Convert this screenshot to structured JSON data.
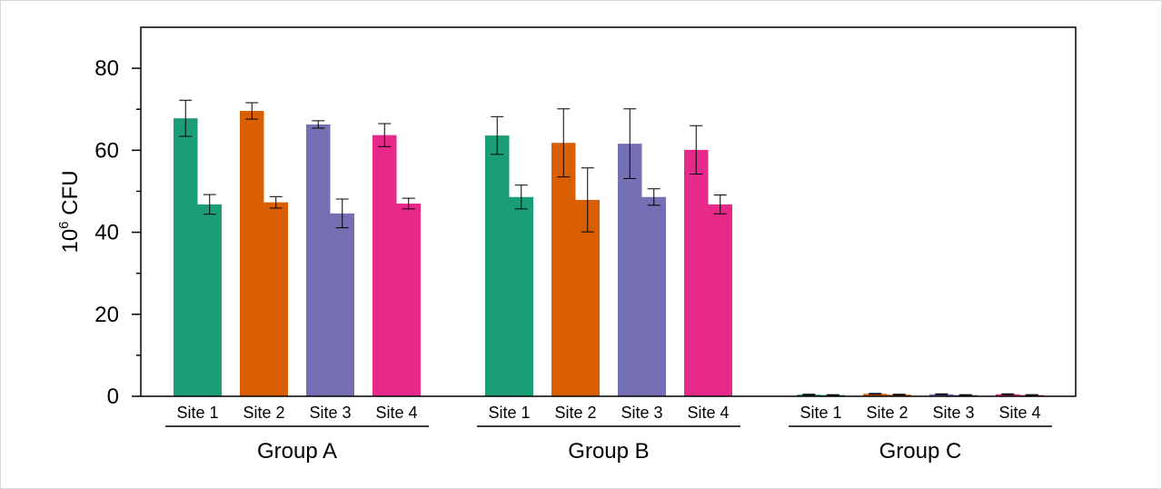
{
  "chart_data": {
    "type": "bar",
    "title": "",
    "ylabel": "10",
    "ylabel_sup": "6",
    "ylabel_unit": " CFU",
    "xlabel": "",
    "ylim": [
      0,
      90
    ],
    "yticks": [
      0,
      20,
      40,
      60,
      80
    ],
    "yticks_labels": [
      "0",
      "20",
      "40",
      "60",
      "80"
    ],
    "grid": false,
    "legend": "none",
    "bar_colors": [
      "#1b9e77",
      "#d95f02",
      "#7570b3",
      "#e7298a"
    ],
    "groups": [
      {
        "name": "Group A",
        "sites": [
          {
            "label": "Site 1",
            "values": [
              67.8,
              46.8
            ],
            "errors": [
              4.4,
              2.4
            ]
          },
          {
            "label": "Site 2",
            "values": [
              69.6,
              47.3
            ],
            "errors": [
              2.0,
              1.4
            ]
          },
          {
            "label": "Site 3",
            "values": [
              66.3,
              44.6
            ],
            "errors": [
              0.9,
              3.5
            ]
          },
          {
            "label": "Site 4",
            "values": [
              63.7,
              47.0
            ],
            "errors": [
              2.8,
              1.3
            ]
          }
        ]
      },
      {
        "name": "Group B",
        "sites": [
          {
            "label": "Site 1",
            "values": [
              63.6,
              48.6
            ],
            "errors": [
              4.6,
              2.9
            ]
          },
          {
            "label": "Site 2",
            "values": [
              61.8,
              47.9
            ],
            "errors": [
              8.3,
              7.8
            ]
          },
          {
            "label": "Site 3",
            "values": [
              61.6,
              48.6
            ],
            "errors": [
              8.5,
              2.0
            ]
          },
          {
            "label": "Site 4",
            "values": [
              60.1,
              46.8
            ],
            "errors": [
              5.9,
              2.3
            ]
          }
        ]
      },
      {
        "name": "Group C",
        "sites": [
          {
            "label": "Site 1",
            "values": [
              0.4,
              0.3
            ],
            "errors": [
              0.1,
              0.1
            ]
          },
          {
            "label": "Site 2",
            "values": [
              0.6,
              0.4
            ],
            "errors": [
              0.1,
              0.1
            ]
          },
          {
            "label": "Site 3",
            "values": [
              0.5,
              0.3
            ],
            "errors": [
              0.1,
              0.1
            ]
          },
          {
            "label": "Site 4",
            "values": [
              0.5,
              0.3
            ],
            "errors": [
              0.1,
              0.1
            ]
          }
        ]
      }
    ]
  }
}
